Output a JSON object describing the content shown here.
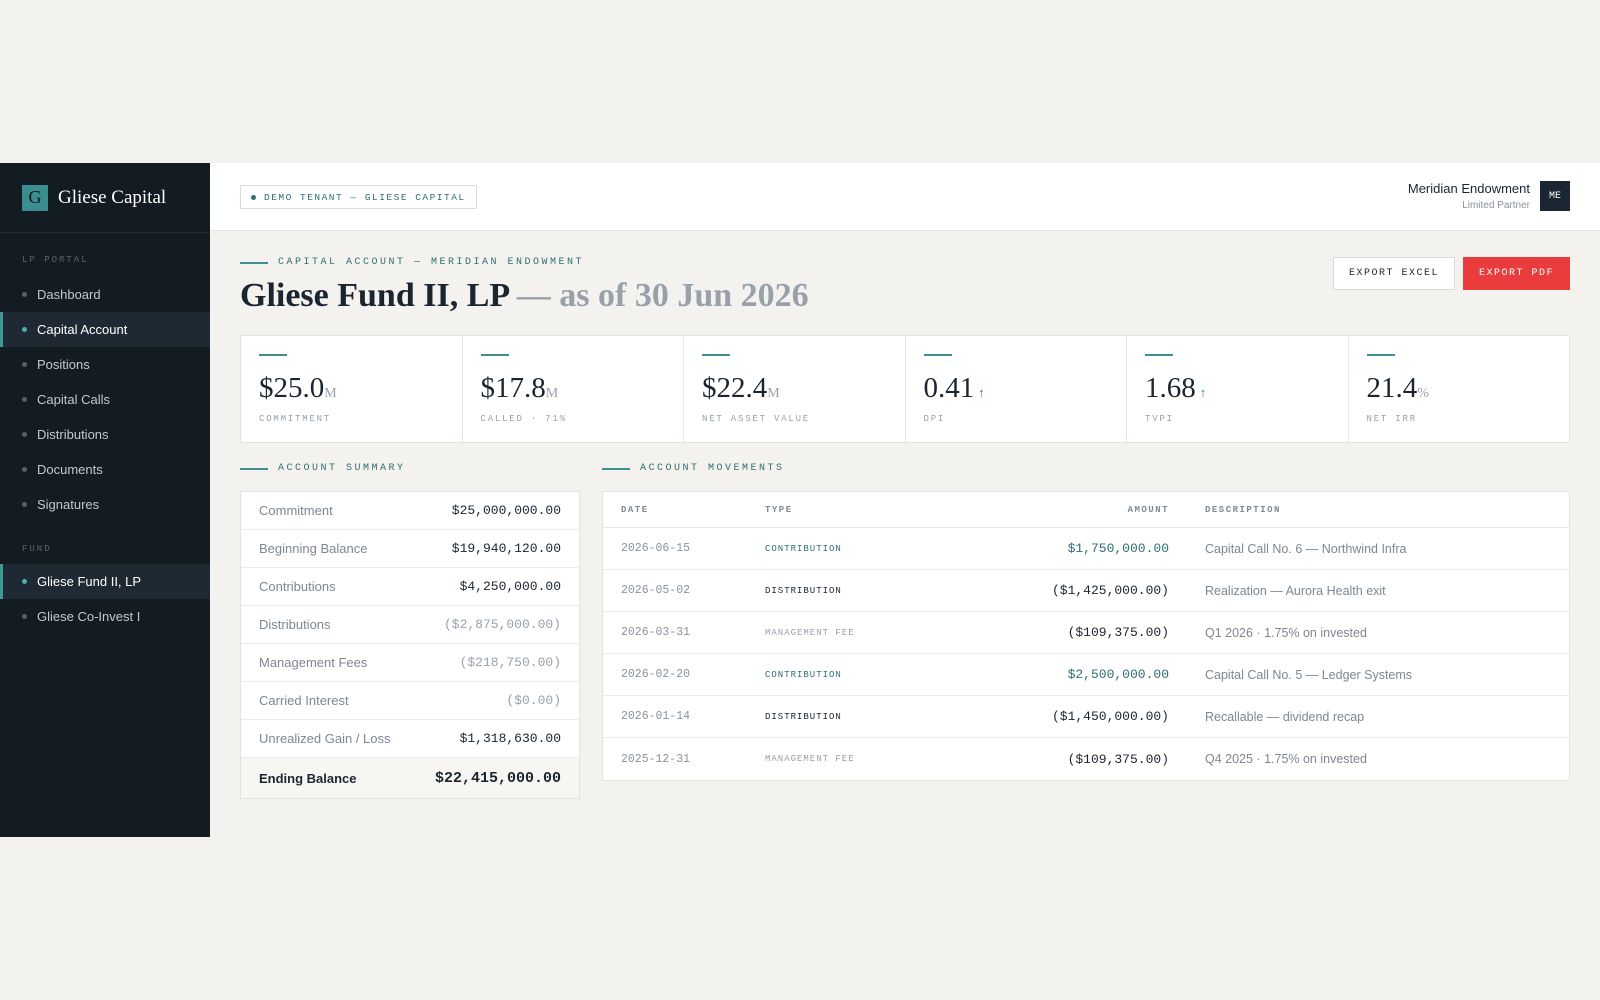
{
  "brand": {
    "logo_letter": "G",
    "name": "Gliese Capital"
  },
  "sidebar": {
    "section1_label": "LP PORTAL",
    "items": [
      {
        "label": "Dashboard"
      },
      {
        "label": "Capital Account"
      },
      {
        "label": "Positions"
      },
      {
        "label": "Capital Calls"
      },
      {
        "label": "Distributions"
      },
      {
        "label": "Documents"
      },
      {
        "label": "Signatures"
      }
    ],
    "section2_label": "FUND",
    "funds": [
      {
        "label": "Gliese Fund II, LP"
      },
      {
        "label": "Gliese Co-Invest I"
      }
    ]
  },
  "topbar": {
    "tenant": "DEMO TENANT — GLIESE CAPITAL",
    "user_name": "Meridian Endowment",
    "user_role": "Limited Partner",
    "avatar": "ME"
  },
  "header": {
    "eyebrow": "CAPITAL ACCOUNT — MERIDIAN ENDOWMENT",
    "title": "Gliese Fund II, LP",
    "title_suffix": " — as of 30 Jun 2026",
    "export_excel": "EXPORT EXCEL",
    "export_pdf": "EXPORT PDF"
  },
  "kpis": [
    {
      "value": "$25.0",
      "unit": "M",
      "arrow": "",
      "label": "COMMITMENT"
    },
    {
      "value": "$17.8",
      "unit": "M",
      "arrow": "",
      "label": "CALLED · 71%"
    },
    {
      "value": "$22.4",
      "unit": "M",
      "arrow": "",
      "label": "NET ASSET VALUE"
    },
    {
      "value": "0.41",
      "unit": "",
      "arrow": "↑",
      "label": "DPI"
    },
    {
      "value": "1.68",
      "unit": "",
      "arrow": "↑",
      "label": "TVPI"
    },
    {
      "value": "21.4",
      "unit": "%",
      "arrow": "",
      "label": "NET IRR"
    }
  ],
  "summary": {
    "title": "ACCOUNT SUMMARY",
    "rows": [
      {
        "label": "Commitment",
        "value": "$25,000,000.00"
      },
      {
        "label": "Beginning Balance",
        "value": "$19,940,120.00"
      },
      {
        "label": "Contributions",
        "value": "$4,250,000.00"
      },
      {
        "label": "Distributions",
        "value": "($2,875,000.00)"
      },
      {
        "label": "Management Fees",
        "value": "($218,750.00)"
      },
      {
        "label": "Carried Interest",
        "value": "($0.00)"
      },
      {
        "label": "Unrealized Gain / Loss",
        "value": "$1,318,630.00"
      }
    ],
    "total": {
      "label": "Ending Balance",
      "value": "$22,415,000.00"
    }
  },
  "movements": {
    "title": "ACCOUNT MOVEMENTS",
    "columns": {
      "date": "DATE",
      "type": "TYPE",
      "amount": "AMOUNT",
      "description": "DESCRIPTION"
    },
    "rows": [
      {
        "date": "2026-06-15",
        "type": "CONTRIBUTION",
        "amount": "$1,750,000.00",
        "description": "Capital Call No. 6 — Northwind Infra"
      },
      {
        "date": "2026-05-02",
        "type": "DISTRIBUTION",
        "amount": "($1,425,000.00)",
        "description": "Realization — Aurora Health exit"
      },
      {
        "date": "2026-03-31",
        "type": "MANAGEMENT FEE",
        "amount": "($109,375.00)",
        "description": "Q1 2026 · 1.75% on invested"
      },
      {
        "date": "2026-02-20",
        "type": "CONTRIBUTION",
        "amount": "$2,500,000.00",
        "description": "Capital Call No. 5 — Ledger Systems"
      },
      {
        "date": "2026-01-14",
        "type": "DISTRIBUTION",
        "amount": "($1,450,000.00)",
        "description": "Recallable — dividend recap"
      },
      {
        "date": "2025-12-31",
        "type": "MANAGEMENT FEE",
        "amount": "($109,375.00)",
        "description": "Q4 2025 · 1.75% on invested"
      }
    ]
  },
  "colors": {
    "sidebar_bg": "#131b23",
    "accent_teal": "#3f8f92",
    "primary_red": "#ea3c3c",
    "page_bg": "#f3f2ee"
  }
}
